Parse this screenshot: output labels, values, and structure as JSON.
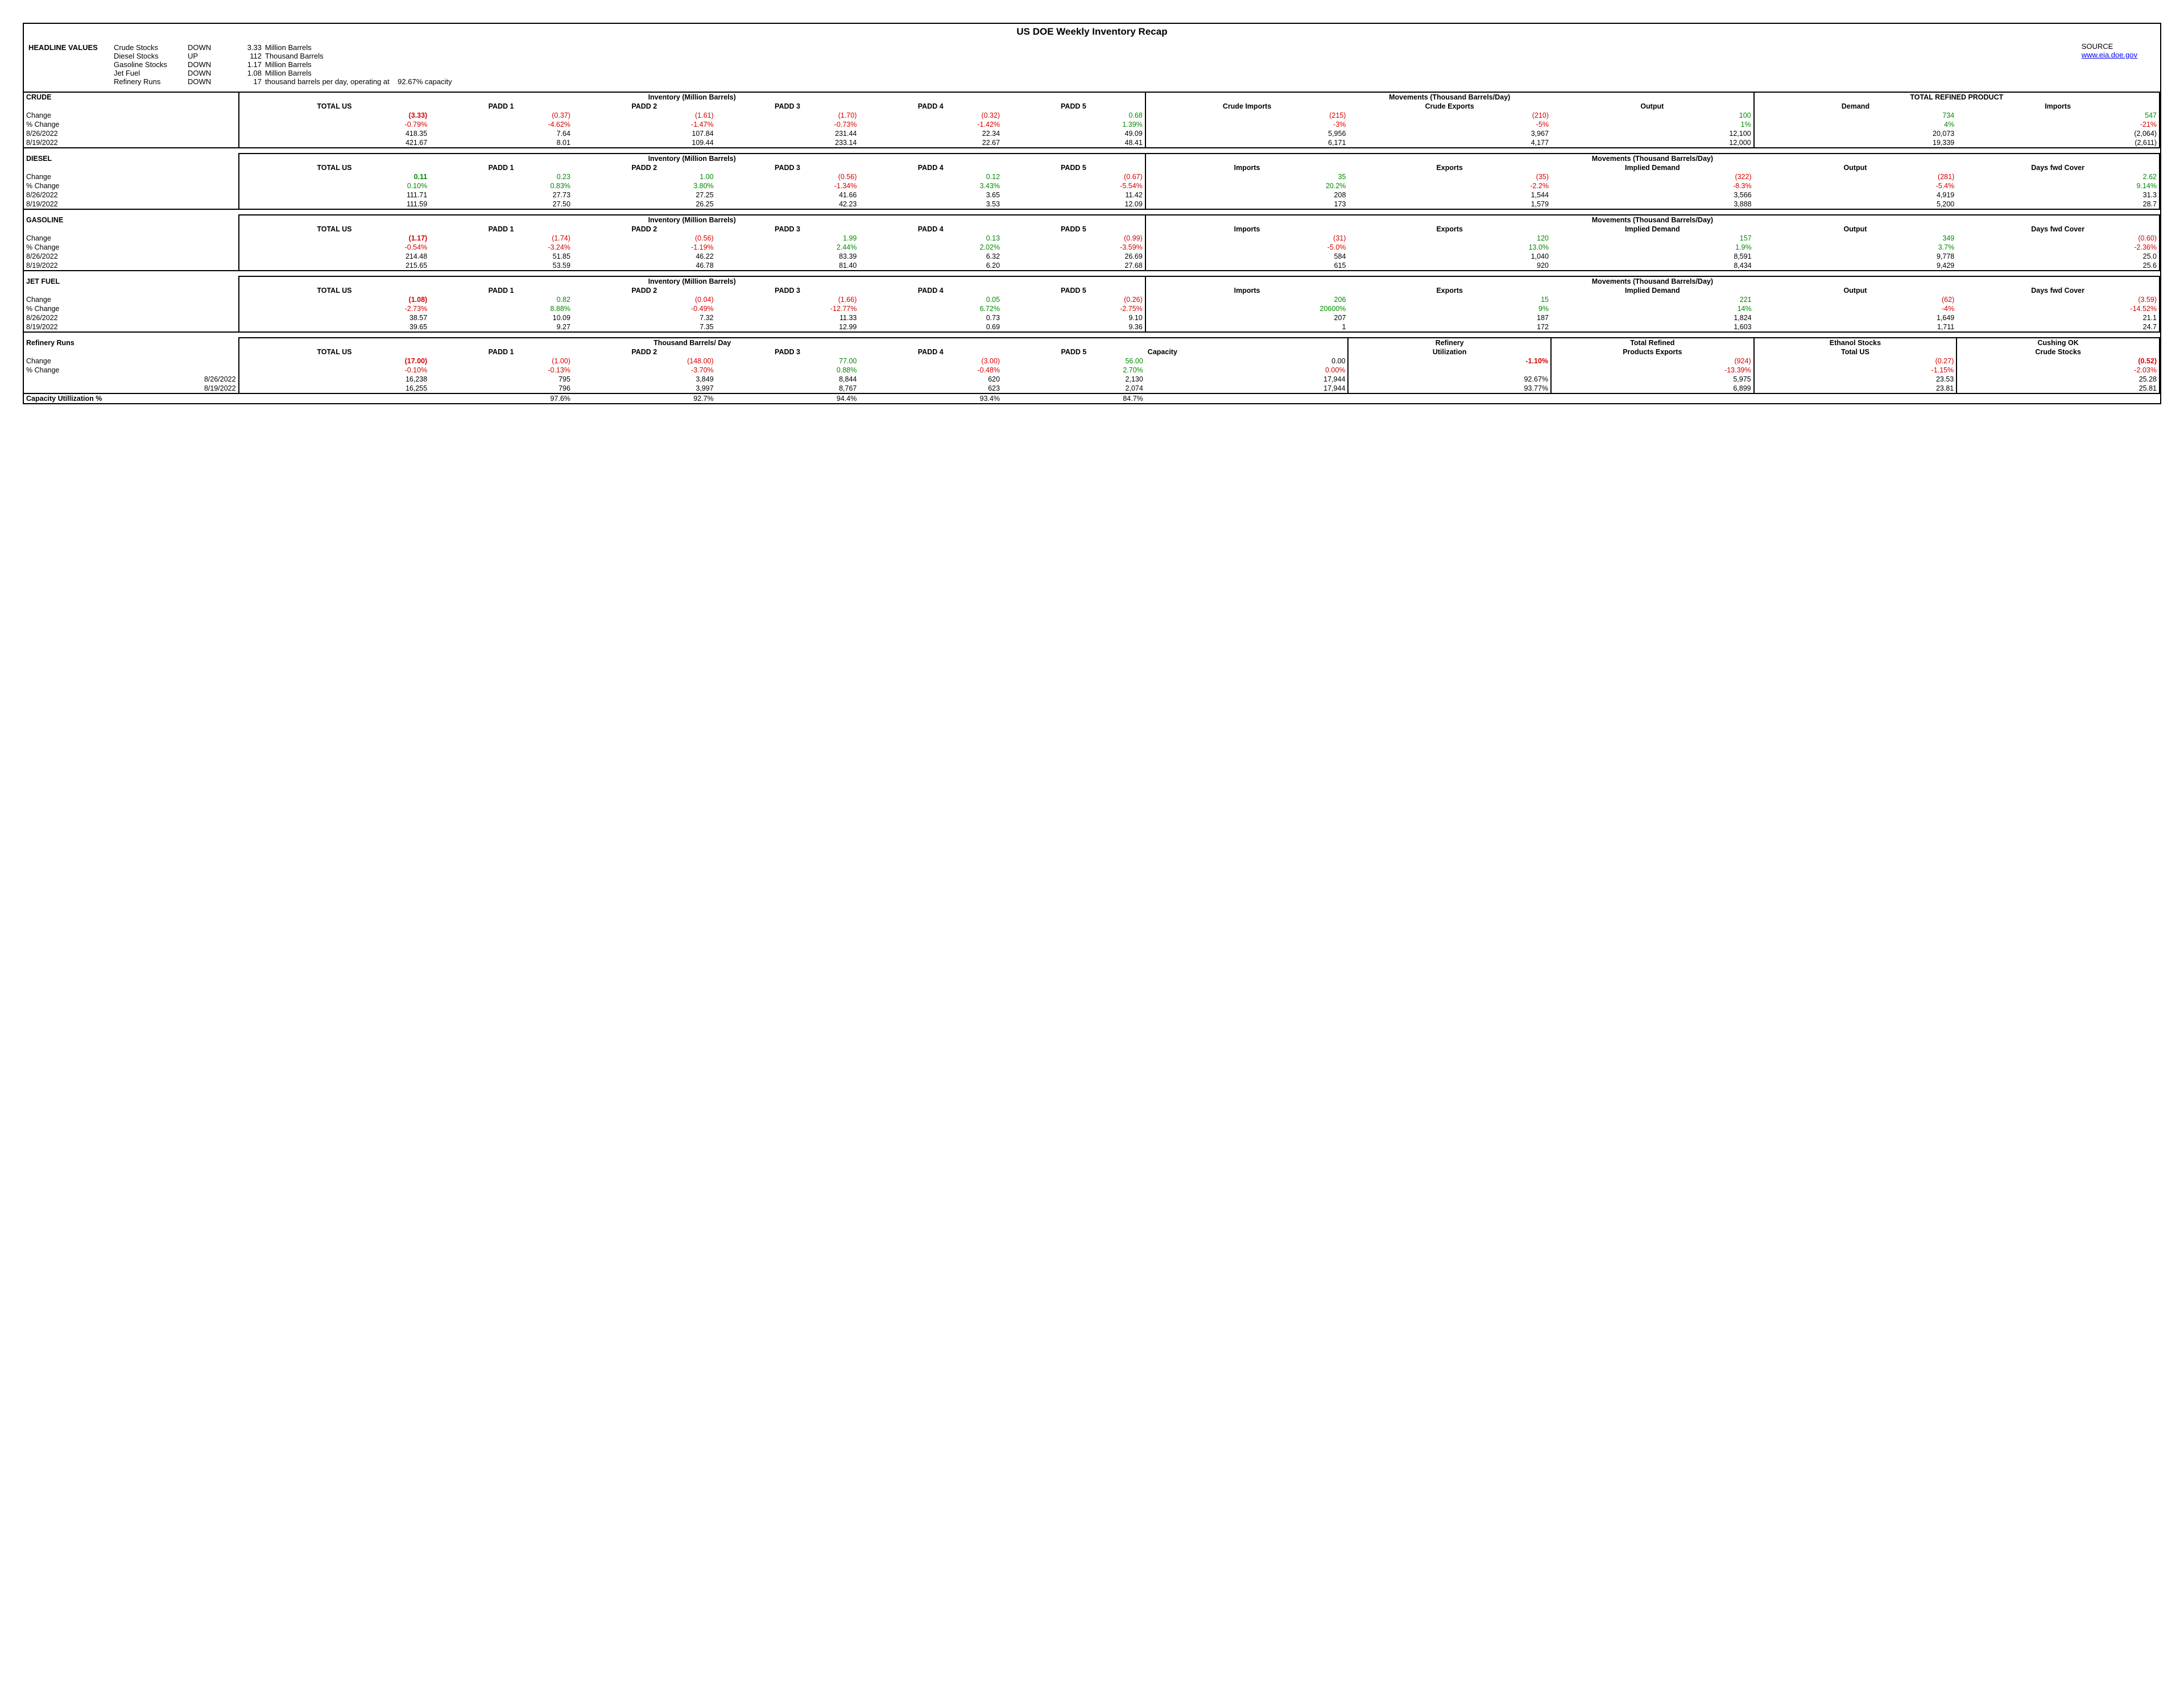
{
  "title": "US DOE Weekly Inventory Recap",
  "source_label": "SOURCE",
  "source_link": "www.eia.doe.gov",
  "headline_label": "HEADLINE VALUES",
  "headlines": [
    {
      "item": "Crude Stocks",
      "dir": "DOWN",
      "val": "3.33",
      "unit": "Million Barrels"
    },
    {
      "item": "Diesel Stocks",
      "dir": "UP",
      "val": "112",
      "unit": "Thousand Barrels"
    },
    {
      "item": "Gasoline Stocks",
      "dir": "DOWN",
      "val": "1.17",
      "unit": "Million Barrels"
    },
    {
      "item": "Jet Fuel",
      "dir": "DOWN",
      "val": "1.08",
      "unit": "Million Barrels"
    },
    {
      "item": "Refinery Runs",
      "dir": "DOWN",
      "val": "17",
      "unit": "thousand barrels per day, operating at    92.67% capacity"
    }
  ],
  "col_labels": {
    "total_us": "TOTAL US",
    "padd1": "PADD 1",
    "padd2": "PADD 2",
    "padd3": "PADD 3",
    "padd4": "PADD 4",
    "padd5": "PADD 5",
    "inv_hdr": "Inventory (Million Barrels)",
    "mov_hdr": "Movements (Thousand Barrels/Day)",
    "trp_hdr": "TOTAL REFINED PRODUCT",
    "tbday": "Thousand Barrels/ Day"
  },
  "row_labels": {
    "change": "Change",
    "pct": "% Change",
    "d1": "8/26/2022",
    "d2": "8/19/2022",
    "caputil": "Capacity Utillization %"
  },
  "crude": {
    "name": "CRUDE",
    "mov_cols": [
      "Crude Imports",
      "Crude Exports",
      "Output"
    ],
    "trp_cols": [
      "Demand",
      "Imports"
    ],
    "change": {
      "total": "(3.33)",
      "p1": "(0.37)",
      "p2": "(1.61)",
      "p3": "(1.70)",
      "p4": "(0.32)",
      "p5": "0.68",
      "m1": "(215)",
      "m2": "(210)",
      "m3": "100",
      "t1": "734",
      "t2": "547"
    },
    "change_cls": {
      "total": "red big",
      "p1": "red",
      "p2": "red",
      "p3": "red",
      "p4": "red",
      "p5": "green",
      "m1": "red",
      "m2": "red",
      "m3": "green",
      "t1": "green",
      "t2": "green"
    },
    "pct": {
      "total": "-0.79%",
      "p1": "-4.62%",
      "p2": "-1.47%",
      "p3": "-0.73%",
      "p4": "-1.42%",
      "p5": "1.39%",
      "m1": "-3%",
      "m2": "-5%",
      "m3": "1%",
      "t1": "4%",
      "t2": "-21%"
    },
    "pct_cls": {
      "total": "red",
      "p1": "red",
      "p2": "red",
      "p3": "red",
      "p4": "red",
      "p5": "green",
      "m1": "red",
      "m2": "red",
      "m3": "green",
      "t1": "green",
      "t2": "red"
    },
    "d1": {
      "total": "418.35",
      "p1": "7.64",
      "p2": "107.84",
      "p3": "231.44",
      "p4": "22.34",
      "p5": "49.09",
      "m1": "5,956",
      "m2": "3,967",
      "m3": "12,100",
      "t1": "20,073",
      "t2": "(2,064)"
    },
    "d2": {
      "total": "421.67",
      "p1": "8.01",
      "p2": "109.44",
      "p3": "233.14",
      "p4": "22.67",
      "p5": "48.41",
      "m1": "6,171",
      "m2": "4,177",
      "m3": "12,000",
      "t1": "19,339",
      "t2": "(2,611)"
    }
  },
  "diesel": {
    "name": "DIESEL",
    "mov_cols": [
      "Imports",
      "Exports",
      "Implied Demand",
      "Output",
      "Days fwd Cover"
    ],
    "change": {
      "total": "0.11",
      "p1": "0.23",
      "p2": "1.00",
      "p3": "(0.56)",
      "p4": "0.12",
      "p5": "(0.67)",
      "m1": "35",
      "m2": "(35)",
      "m3": "(322)",
      "m4": "(281)",
      "m5": "2.62"
    },
    "change_cls": {
      "total": "green big",
      "p1": "green",
      "p2": "green",
      "p3": "red",
      "p4": "green",
      "p5": "red",
      "m1": "green",
      "m2": "red",
      "m3": "red",
      "m4": "red",
      "m5": "green"
    },
    "pct": {
      "total": "0.10%",
      "p1": "0.83%",
      "p2": "3.80%",
      "p3": "-1.34%",
      "p4": "3.43%",
      "p5": "-5.54%",
      "m1": "20.2%",
      "m2": "-2.2%",
      "m3": "-8.3%",
      "m4": "-5.4%",
      "m5": "9.14%"
    },
    "pct_cls": {
      "total": "green",
      "p1": "green",
      "p2": "green",
      "p3": "red",
      "p4": "green",
      "p5": "red",
      "m1": "green",
      "m2": "red",
      "m3": "red",
      "m4": "red",
      "m5": "green"
    },
    "d1": {
      "total": "111.71",
      "p1": "27.73",
      "p2": "27.25",
      "p3": "41.66",
      "p4": "3.65",
      "p5": "11.42",
      "m1": "208",
      "m2": "1,544",
      "m3": "3,566",
      "m4": "4,919",
      "m5": "31.3"
    },
    "d2": {
      "total": "111.59",
      "p1": "27.50",
      "p2": "26.25",
      "p3": "42.23",
      "p4": "3.53",
      "p5": "12.09",
      "m1": "173",
      "m2": "1,579",
      "m3": "3,888",
      "m4": "5,200",
      "m5": "28.7"
    }
  },
  "gasoline": {
    "name": "GASOLINE",
    "mov_cols": [
      "Imports",
      "Exports",
      "Implied Demand",
      "Output",
      "Days fwd Cover"
    ],
    "change": {
      "total": "(1.17)",
      "p1": "(1.74)",
      "p2": "(0.56)",
      "p3": "1.99",
      "p4": "0.13",
      "p5": "(0.99)",
      "m1": "(31)",
      "m2": "120",
      "m3": "157",
      "m4": "349",
      "m5": "(0.60)"
    },
    "change_cls": {
      "total": "red big",
      "p1": "red",
      "p2": "red",
      "p3": "green",
      "p4": "green",
      "p5": "red",
      "m1": "red",
      "m2": "green",
      "m3": "green",
      "m4": "green",
      "m5": "red"
    },
    "pct": {
      "total": "-0.54%",
      "p1": "-3.24%",
      "p2": "-1.19%",
      "p3": "2.44%",
      "p4": "2.02%",
      "p5": "-3.59%",
      "m1": "-5.0%",
      "m2": "13.0%",
      "m3": "1.9%",
      "m4": "3.7%",
      "m5": "-2.36%"
    },
    "pct_cls": {
      "total": "red",
      "p1": "red",
      "p2": "red",
      "p3": "green",
      "p4": "green",
      "p5": "red",
      "m1": "red",
      "m2": "green",
      "m3": "green",
      "m4": "green",
      "m5": "red"
    },
    "d1": {
      "total": "214.48",
      "p1": "51.85",
      "p2": "46.22",
      "p3": "83.39",
      "p4": "6.32",
      "p5": "26.69",
      "m1": "584",
      "m2": "1,040",
      "m3": "8,591",
      "m4": "9,778",
      "m5": "25.0"
    },
    "d2": {
      "total": "215.65",
      "p1": "53.59",
      "p2": "46.78",
      "p3": "81.40",
      "p4": "6.20",
      "p5": "27.68",
      "m1": "615",
      "m2": "920",
      "m3": "8,434",
      "m4": "9,429",
      "m5": "25.6"
    }
  },
  "jet": {
    "name": "JET FUEL",
    "mov_cols": [
      "Imports",
      "Exports",
      "Implied Demand",
      "Output",
      "Days fwd Cover"
    ],
    "change": {
      "total": "(1.08)",
      "p1": "0.82",
      "p2": "(0.04)",
      "p3": "(1.66)",
      "p4": "0.05",
      "p5": "(0.26)",
      "m1": "206",
      "m2": "15",
      "m3": "221",
      "m4": "(62)",
      "m5": "(3.59)"
    },
    "change_cls": {
      "total": "red big",
      "p1": "green",
      "p2": "red",
      "p3": "red",
      "p4": "green",
      "p5": "red",
      "m1": "green",
      "m2": "green",
      "m3": "green",
      "m4": "red",
      "m5": "red"
    },
    "pct": {
      "total": "-2.73%",
      "p1": "8.88%",
      "p2": "-0.49%",
      "p3": "-12.77%",
      "p4": "6.72%",
      "p5": "-2.75%",
      "m1": "20600%",
      "m2": "9%",
      "m3": "14%",
      "m4": "-4%",
      "m5": "-14.52%"
    },
    "pct_cls": {
      "total": "red",
      "p1": "green",
      "p2": "red",
      "p3": "red",
      "p4": "green",
      "p5": "red",
      "m1": "green",
      "m2": "green",
      "m3": "green",
      "m4": "red",
      "m5": "red"
    },
    "d1": {
      "total": "38.57",
      "p1": "10.09",
      "p2": "7.32",
      "p3": "11.33",
      "p4": "0.73",
      "p5": "9.10",
      "m1": "207",
      "m2": "187",
      "m3": "1,824",
      "m4": "1,649",
      "m5": "21.1"
    },
    "d2": {
      "total": "39.65",
      "p1": "9.27",
      "p2": "7.35",
      "p3": "12.99",
      "p4": "0.69",
      "p5": "9.36",
      "m1": "1",
      "m2": "172",
      "m3": "1,603",
      "m4": "1,711",
      "m5": "24.7"
    }
  },
  "refinery": {
    "name": "Refinery Runs",
    "extra_labels": {
      "capacity": "Capacity",
      "refutil": "Refinery",
      "refutil2": "Utilization",
      "trpe1": "Total Refined",
      "trpe2": "Products Exports",
      "eth1": "Ethanol Stocks",
      "eth2": "Total US",
      "cush1": "Cushing OK",
      "cush2": "Crude Stocks"
    },
    "change": {
      "total": "(17.00)",
      "p1": "(1.00)",
      "p2": "(148.00)",
      "p3": "77.00",
      "p4": "(3.00)",
      "p5": "56.00",
      "cap": "0.00",
      "util": "-1.10%",
      "trpe": "(924)",
      "eth": "(0.27)",
      "cush": "(0.52)"
    },
    "change_cls": {
      "total": "red big",
      "p1": "red",
      "p2": "red",
      "p3": "green",
      "p4": "red",
      "p5": "green",
      "cap": "",
      "util": "red big",
      "trpe": "red",
      "eth": "red",
      "cush": "red big"
    },
    "pct": {
      "total": "-0.10%",
      "p1": "-0.13%",
      "p2": "-3.70%",
      "p3": "0.88%",
      "p4": "-0.48%",
      "p5": "2.70%",
      "cap": "0.00%",
      "util": "",
      "trpe": "-13.39%",
      "eth": "-1.15%",
      "cush": "-2.03%"
    },
    "pct_cls": {
      "total": "red",
      "p1": "red",
      "p2": "red",
      "p3": "green",
      "p4": "red",
      "p5": "green",
      "cap": "red",
      "util": "",
      "trpe": "red",
      "eth": "red",
      "cush": "red"
    },
    "d1": {
      "total": "16,238",
      "p1": "795",
      "p2": "3,849",
      "p3": "8,844",
      "p4": "620",
      "p5": "2,130",
      "cap": "17,944",
      "util": "92.67%",
      "trpe": "5,975",
      "eth": "23.53",
      "cush": "25.28"
    },
    "d2": {
      "total": "16,255",
      "p1": "796",
      "p2": "3,997",
      "p3": "8,767",
      "p4": "623",
      "p5": "2,074",
      "cap": "17,944",
      "util": "93.77%",
      "trpe": "6,899",
      "eth": "23.81",
      "cush": "25.81"
    },
    "caputil": {
      "p1": "97.6%",
      "p2": "92.7%",
      "p3": "94.4%",
      "p4": "93.4%",
      "p5": "84.7%"
    }
  }
}
